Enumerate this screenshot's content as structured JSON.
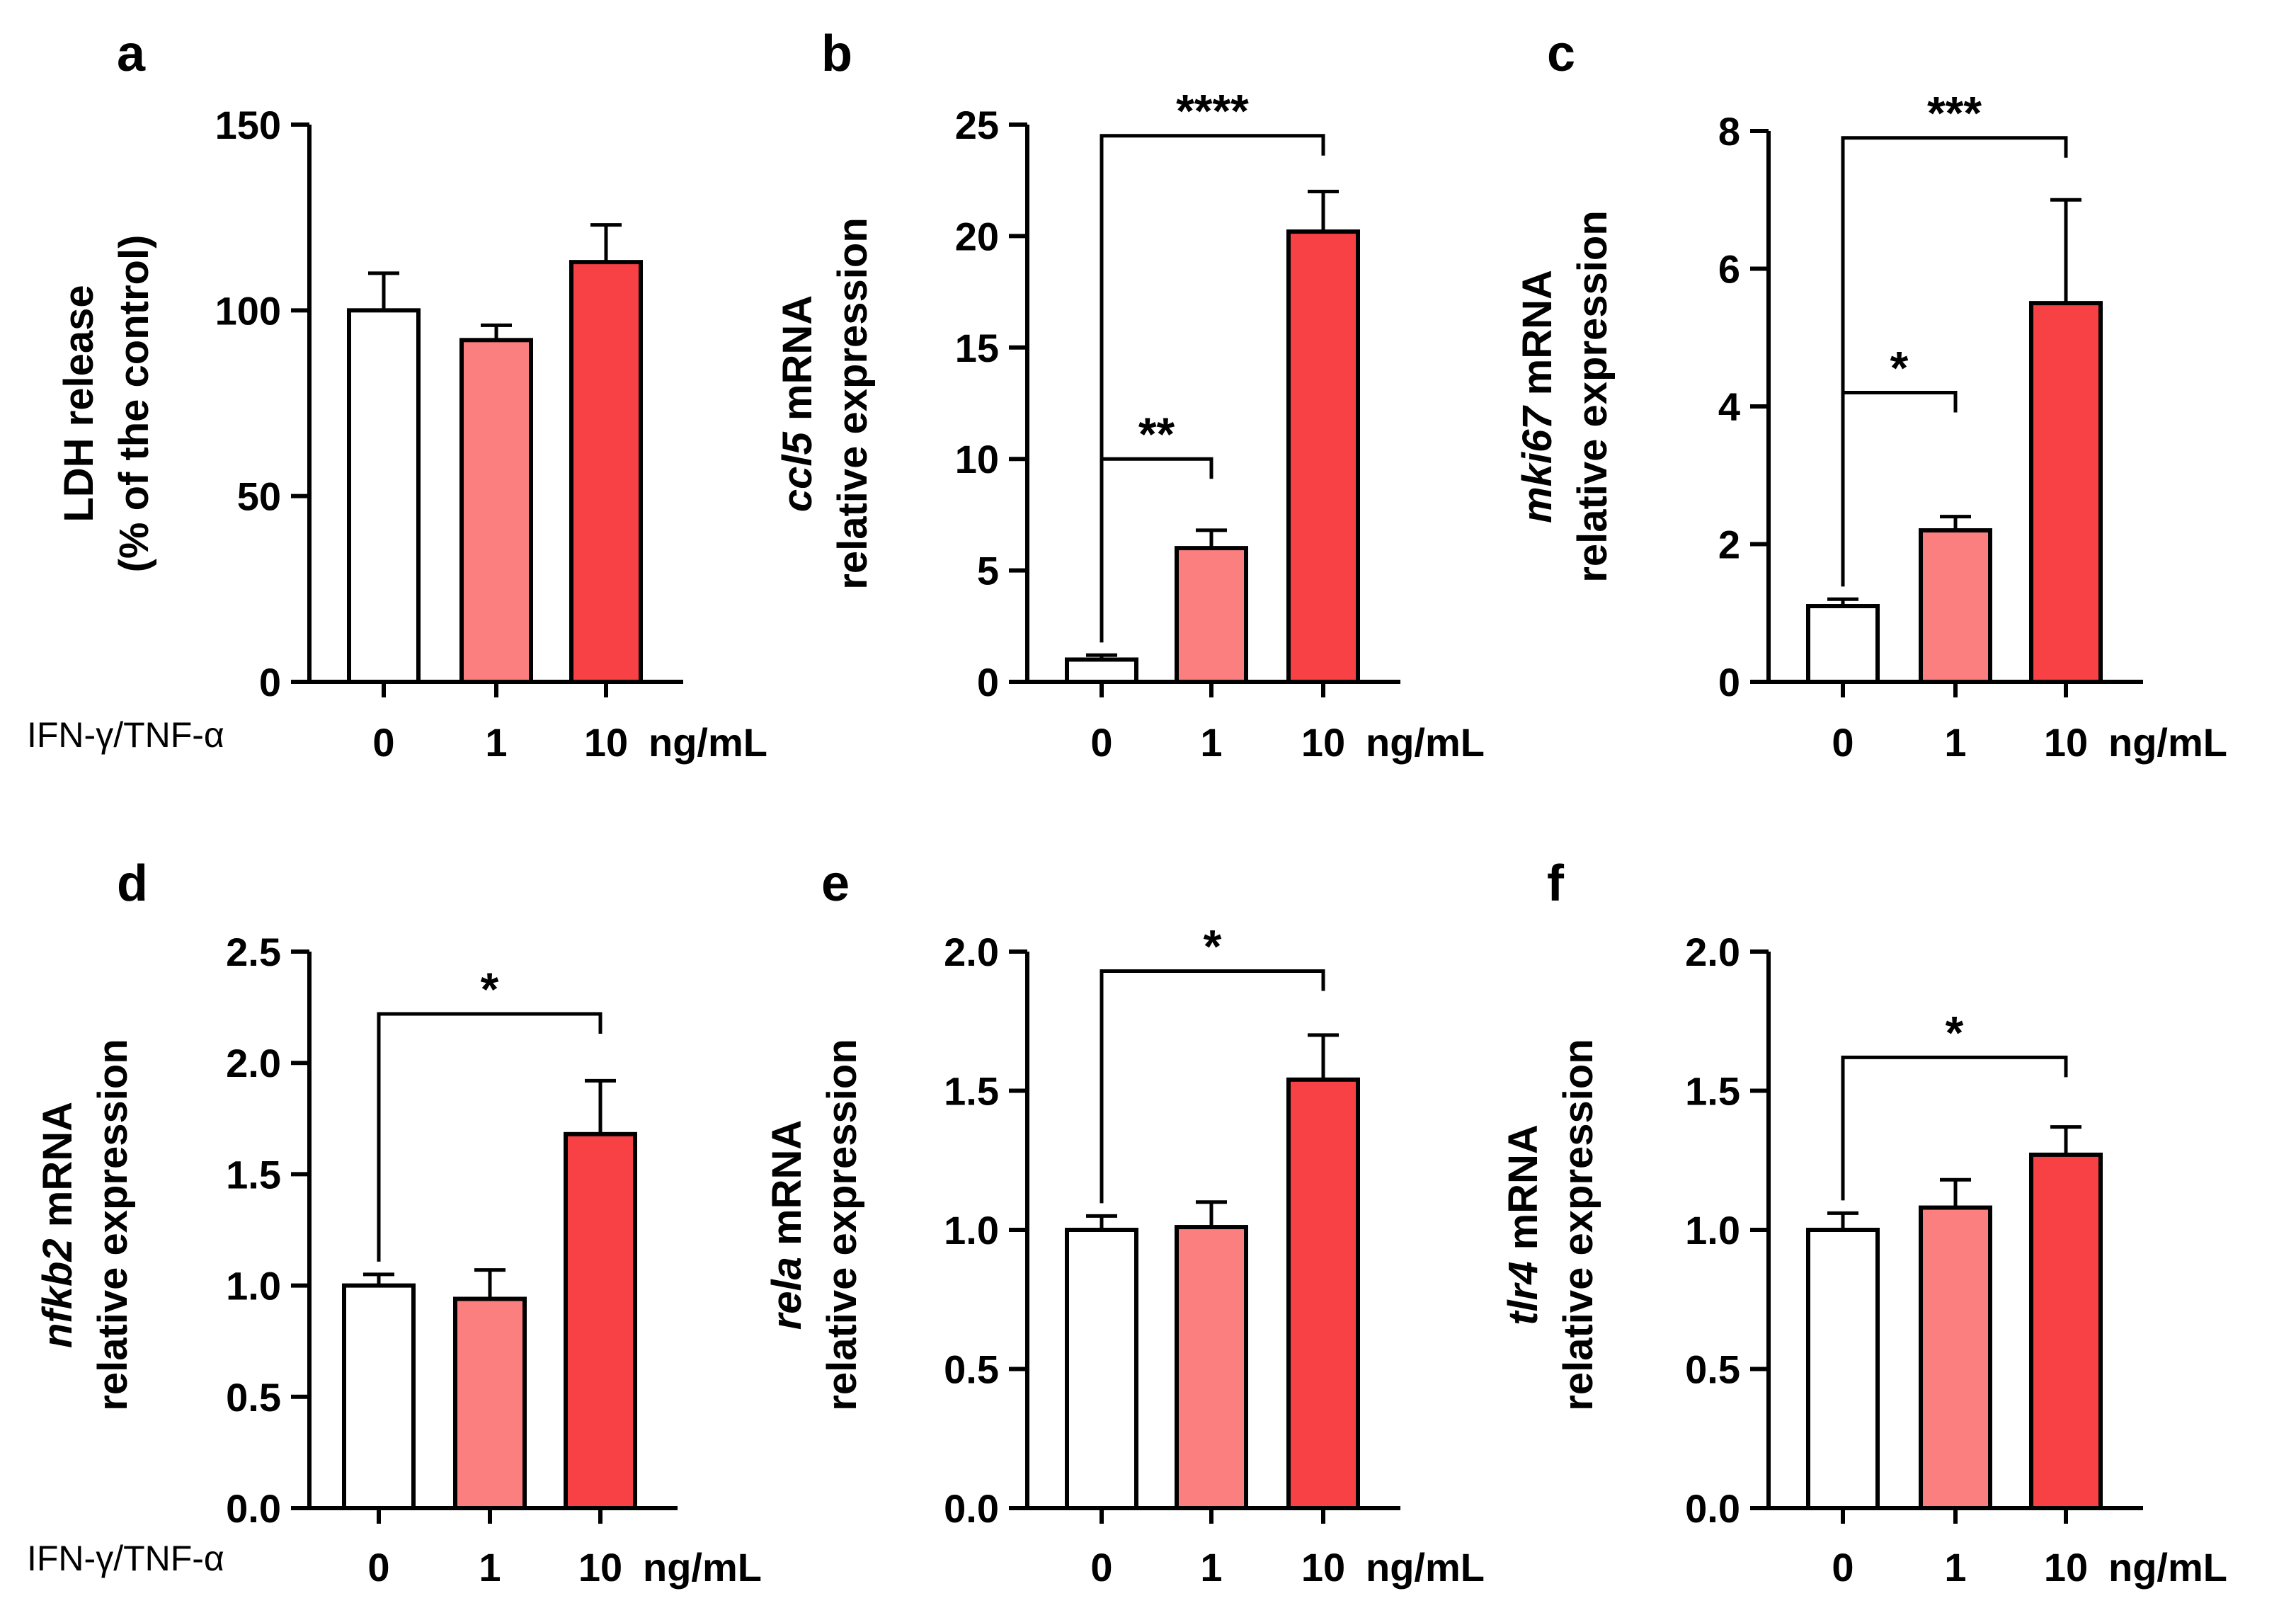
{
  "figure": {
    "x_prefix_label": "IFN-γ/TNF-α",
    "unit": "ng/mL",
    "colors": {
      "bar_0": "#ffffff",
      "bar_1": "#fc7f7f",
      "bar_10": "#f84144",
      "stroke": "#000000"
    }
  },
  "chart_data": [
    {
      "panel": "a",
      "type": "bar",
      "categories": [
        "0",
        "1",
        "10"
      ],
      "values": [
        100,
        92,
        113
      ],
      "errors": [
        10,
        4,
        10
      ],
      "ylim": [
        0,
        150
      ],
      "yticks": [
        "0",
        "50",
        "100",
        "150"
      ],
      "ylabel_lines": [
        [
          "LDH release"
        ],
        [
          "(% of the control)"
        ]
      ],
      "significance": [],
      "show_prefix": true
    },
    {
      "panel": "b",
      "type": "bar",
      "categories": [
        "0",
        "1",
        "10"
      ],
      "values": [
        1.0,
        6.0,
        20.2
      ],
      "errors": [
        0.2,
        0.8,
        1.8
      ],
      "ylim": [
        0,
        25
      ],
      "yticks": [
        "0",
        "5",
        "10",
        "15",
        "20",
        "25"
      ],
      "ylabel_lines": [
        [
          "ccl5",
          " mRNA"
        ],
        [
          "relative expression"
        ]
      ],
      "significance": [
        {
          "from": 0,
          "to": 1,
          "stars": "**",
          "level": 10
        },
        {
          "from": 0,
          "to": 2,
          "stars": "****",
          "level": 24.5
        }
      ],
      "show_prefix": false
    },
    {
      "panel": "c",
      "type": "bar",
      "categories": [
        "0",
        "1",
        "10"
      ],
      "values": [
        1.1,
        2.2,
        5.5
      ],
      "errors": [
        0.1,
        0.2,
        1.5
      ],
      "ylim": [
        0,
        8
      ],
      "yticks": [
        "0",
        "2",
        "4",
        "6",
        "8"
      ],
      "ylabel_lines": [
        [
          "mki67",
          " mRNA"
        ],
        [
          "relative expression"
        ]
      ],
      "significance": [
        {
          "from": 0,
          "to": 1,
          "stars": "*",
          "level": 4.2
        },
        {
          "from": 0,
          "to": 2,
          "stars": "***",
          "level": 7.9
        }
      ],
      "show_prefix": false
    },
    {
      "panel": "d",
      "type": "bar",
      "categories": [
        "0",
        "1",
        "10"
      ],
      "values": [
        1.0,
        0.94,
        1.68
      ],
      "errors": [
        0.05,
        0.13,
        0.24
      ],
      "ylim": [
        0,
        2.5
      ],
      "yticks": [
        "0.0",
        "0.5",
        "1.0",
        "1.5",
        "2.0",
        "2.5"
      ],
      "ylabel_lines": [
        [
          "nfkb2",
          " mRNA"
        ],
        [
          "relative expression"
        ]
      ],
      "significance": [
        {
          "from": 0,
          "to": 2,
          "stars": "*",
          "level": 2.22
        }
      ],
      "show_prefix": true
    },
    {
      "panel": "e",
      "type": "bar",
      "categories": [
        "0",
        "1",
        "10"
      ],
      "values": [
        1.0,
        1.01,
        1.54
      ],
      "errors": [
        0.05,
        0.09,
        0.16
      ],
      "ylim": [
        0,
        2.0
      ],
      "yticks": [
        "0.0",
        "0.5",
        "1.0",
        "1.5",
        "2.0"
      ],
      "ylabel_lines": [
        [
          "rela",
          " mRNA"
        ],
        [
          "relative expression"
        ]
      ],
      "significance": [
        {
          "from": 0,
          "to": 2,
          "stars": "*",
          "level": 1.93
        }
      ],
      "show_prefix": false
    },
    {
      "panel": "f",
      "type": "bar",
      "categories": [
        "0",
        "1",
        "10"
      ],
      "values": [
        1.0,
        1.08,
        1.27
      ],
      "errors": [
        0.06,
        0.1,
        0.1
      ],
      "ylim": [
        0,
        2.0
      ],
      "yticks": [
        "0.0",
        "0.5",
        "1.0",
        "1.5",
        "2.0"
      ],
      "ylabel_lines": [
        [
          "tlr4",
          " mRNA"
        ],
        [
          "relative expression"
        ]
      ],
      "significance": [
        {
          "from": 0,
          "to": 2,
          "stars": "*",
          "level": 1.62
        }
      ],
      "show_prefix": false
    }
  ]
}
